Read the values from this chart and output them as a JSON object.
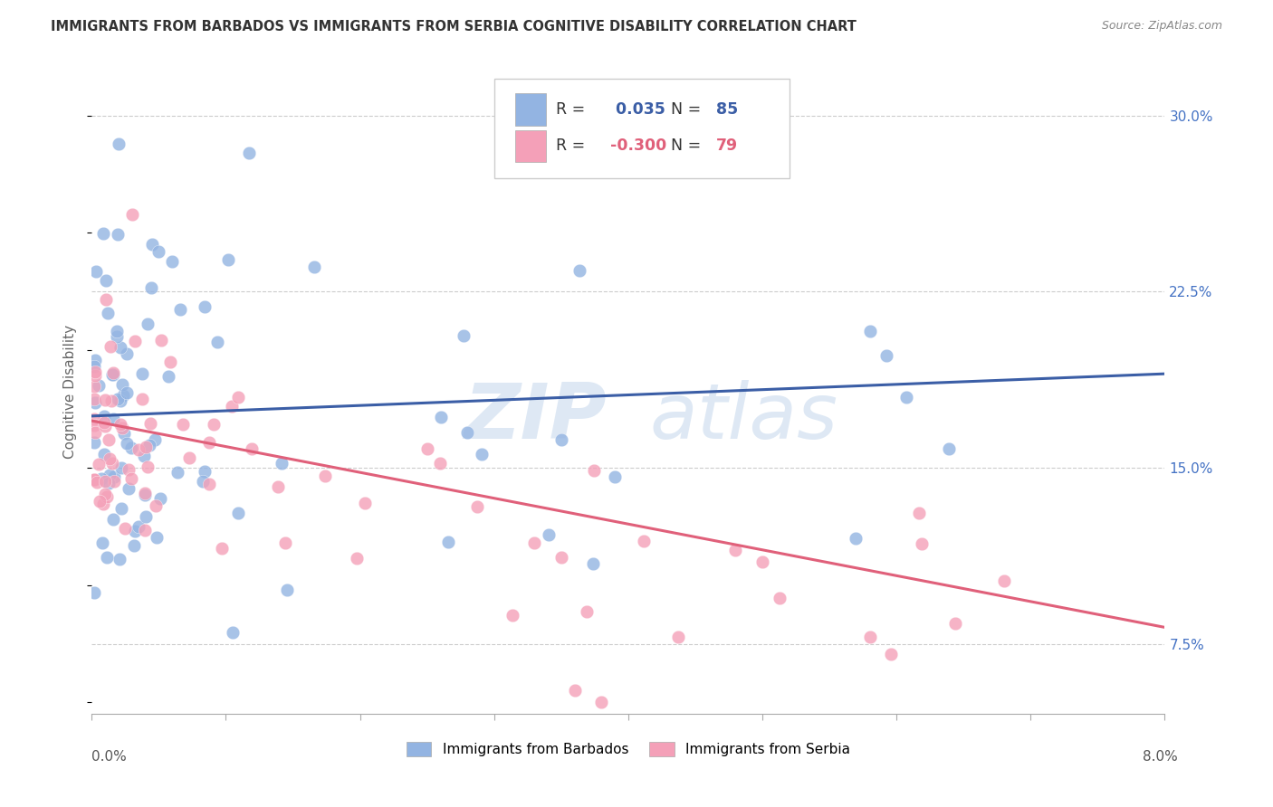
{
  "title": "IMMIGRANTS FROM BARBADOS VS IMMIGRANTS FROM SERBIA COGNITIVE DISABILITY CORRELATION CHART",
  "source": "Source: ZipAtlas.com",
  "ylabel": "Cognitive Disability",
  "right_ytick_labels": [
    "7.5%",
    "15.0%",
    "22.5%",
    "30.0%"
  ],
  "right_ytick_vals": [
    7.5,
    15.0,
    22.5,
    30.0
  ],
  "xmin": 0.0,
  "xmax": 8.0,
  "ymin": 4.5,
  "ymax": 32.0,
  "barbados_color": "#93b4e2",
  "serbia_color": "#f4a0b8",
  "barbados_line_color": "#3b5ea6",
  "serbia_line_color": "#e0607a",
  "barbados_R": 0.035,
  "barbados_N": 85,
  "serbia_R": -0.3,
  "serbia_N": 79,
  "watermark_zip": "ZIP",
  "watermark_atlas": "atlas",
  "legend_label_barbados": "Immigrants from Barbados",
  "legend_label_serbia": "Immigrants from Serbia",
  "barbados_trend_y0": 17.2,
  "barbados_trend_y1": 19.0,
  "serbia_trend_y0": 17.0,
  "serbia_trend_y1": 8.2
}
